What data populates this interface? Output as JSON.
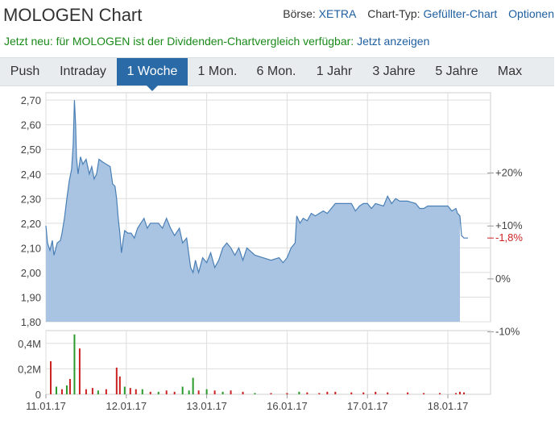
{
  "header": {
    "title": "MOLOGEN Chart",
    "boerse_label": "Börse:",
    "boerse_value": "XETRA",
    "charttyp_label": "Chart-Typ:",
    "charttyp_value": "Gefüllter-Chart",
    "optionen": "Optionen"
  },
  "notice": {
    "text": "Jetzt neu: für MOLOGEN ist der Dividenden-Chartvergleich verfügbar:",
    "link": "Jetzt anzeigen"
  },
  "tabs": [
    {
      "label": "Push",
      "active": false
    },
    {
      "label": "Intraday",
      "active": false
    },
    {
      "label": "1 Woche",
      "active": true
    },
    {
      "label": "1 Mon.",
      "active": false
    },
    {
      "label": "6 Mon.",
      "active": false
    },
    {
      "label": "1 Jahr",
      "active": false
    },
    {
      "label": "3 Jahre",
      "active": false
    },
    {
      "label": "5 Jahre",
      "active": false
    },
    {
      "label": "Max",
      "active": false
    }
  ],
  "colors": {
    "area_fill": "#a9c4e2",
    "area_line": "#4a7fb5",
    "grid": "#dddddd",
    "volume_up": "#2a9a2a",
    "volume_down": "#cc2222",
    "change_negative": "#cc2222"
  },
  "chart_data": {
    "type": "area",
    "title": "",
    "y_ticks": [
      "2,70",
      "2,60",
      "2,50",
      "2,40",
      "2,30",
      "2,20",
      "2,10",
      "2,00",
      "1,90",
      "1,80"
    ],
    "ylim": [
      1.8,
      2.73
    ],
    "right_ticks": [
      {
        "label": "+20%",
        "value": 2.404
      },
      {
        "label": "+10%",
        "value": 2.189
      },
      {
        "label": "0%",
        "value": 1.974
      },
      {
        "label": "-10%",
        "value": 1.759
      }
    ],
    "current_change": "-1,8%",
    "current_value": 2.14,
    "reference_value": 2.18,
    "x_ticks": [
      {
        "label": "11.01.17",
        "t": 0
      },
      {
        "label": "12.01.17",
        "t": 1
      },
      {
        "label": "13.01.17",
        "t": 2
      },
      {
        "label": "16.01.17",
        "t": 3
      },
      {
        "label": "17.01.17",
        "t": 4
      },
      {
        "label": "18.01.17",
        "t": 5
      }
    ],
    "x_range": [
      0,
      5.25
    ],
    "price": [
      [
        0.0,
        2.19
      ],
      [
        0.02,
        2.12
      ],
      [
        0.05,
        2.09
      ],
      [
        0.08,
        2.13
      ],
      [
        0.1,
        2.07
      ],
      [
        0.14,
        2.12
      ],
      [
        0.18,
        2.13
      ],
      [
        0.2,
        2.16
      ],
      [
        0.23,
        2.22
      ],
      [
        0.26,
        2.3
      ],
      [
        0.29,
        2.37
      ],
      [
        0.32,
        2.42
      ],
      [
        0.34,
        2.52
      ],
      [
        0.355,
        2.7
      ],
      [
        0.37,
        2.6
      ],
      [
        0.38,
        2.47
      ],
      [
        0.4,
        2.4
      ],
      [
        0.43,
        2.47
      ],
      [
        0.46,
        2.44
      ],
      [
        0.5,
        2.46
      ],
      [
        0.54,
        2.4
      ],
      [
        0.57,
        2.43
      ],
      [
        0.6,
        2.38
      ],
      [
        0.63,
        2.4
      ],
      [
        0.66,
        2.46
      ],
      [
        0.7,
        2.45
      ],
      [
        0.75,
        2.44
      ],
      [
        0.8,
        2.43
      ],
      [
        0.83,
        2.36
      ],
      [
        0.86,
        2.35
      ],
      [
        0.88,
        2.3
      ],
      [
        0.9,
        2.22
      ],
      [
        0.92,
        2.16
      ],
      [
        0.94,
        2.08
      ],
      [
        0.96,
        2.13
      ],
      [
        0.98,
        2.17
      ],
      [
        1.02,
        2.16
      ],
      [
        1.06,
        2.16
      ],
      [
        1.1,
        2.14
      ],
      [
        1.14,
        2.18
      ],
      [
        1.18,
        2.2
      ],
      [
        1.22,
        2.22
      ],
      [
        1.26,
        2.18
      ],
      [
        1.3,
        2.2
      ],
      [
        1.4,
        2.2
      ],
      [
        1.45,
        2.18
      ],
      [
        1.5,
        2.22
      ],
      [
        1.55,
        2.18
      ],
      [
        1.6,
        2.15
      ],
      [
        1.66,
        2.18
      ],
      [
        1.7,
        2.12
      ],
      [
        1.75,
        2.14
      ],
      [
        1.8,
        2.02
      ],
      [
        1.83,
        2.0
      ],
      [
        1.86,
        2.05
      ],
      [
        1.9,
        2.0
      ],
      [
        1.95,
        2.06
      ],
      [
        2.0,
        2.04
      ],
      [
        2.05,
        2.08
      ],
      [
        2.1,
        2.02
      ],
      [
        2.15,
        2.05
      ],
      [
        2.2,
        2.1
      ],
      [
        2.25,
        2.12
      ],
      [
        2.3,
        2.1
      ],
      [
        2.35,
        2.07
      ],
      [
        2.4,
        2.1
      ],
      [
        2.45,
        2.05
      ],
      [
        2.5,
        2.1
      ],
      [
        2.6,
        2.07
      ],
      [
        2.7,
        2.06
      ],
      [
        2.8,
        2.05
      ],
      [
        2.9,
        2.06
      ],
      [
        2.95,
        2.04
      ],
      [
        3.0,
        2.06
      ],
      [
        3.05,
        2.1
      ],
      [
        3.1,
        2.12
      ],
      [
        3.12,
        2.23
      ],
      [
        3.16,
        2.2
      ],
      [
        3.2,
        2.22
      ],
      [
        3.25,
        2.21
      ],
      [
        3.3,
        2.24
      ],
      [
        3.35,
        2.23
      ],
      [
        3.4,
        2.24
      ],
      [
        3.45,
        2.25
      ],
      [
        3.5,
        2.24
      ],
      [
        3.55,
        2.26
      ],
      [
        3.6,
        2.28
      ],
      [
        3.7,
        2.28
      ],
      [
        3.8,
        2.28
      ],
      [
        3.85,
        2.25
      ],
      [
        3.9,
        2.27
      ],
      [
        3.95,
        2.28
      ],
      [
        4.0,
        2.28
      ],
      [
        4.05,
        2.26
      ],
      [
        4.1,
        2.28
      ],
      [
        4.2,
        2.27
      ],
      [
        4.25,
        2.31
      ],
      [
        4.3,
        2.28
      ],
      [
        4.35,
        2.3
      ],
      [
        4.4,
        2.29
      ],
      [
        4.5,
        2.29
      ],
      [
        4.6,
        2.28
      ],
      [
        4.65,
        2.26
      ],
      [
        4.7,
        2.26
      ],
      [
        4.75,
        2.27
      ],
      [
        4.8,
        2.27
      ],
      [
        4.9,
        2.27
      ],
      [
        5.0,
        2.27
      ],
      [
        5.05,
        2.25
      ],
      [
        5.1,
        2.26
      ],
      [
        5.12,
        2.24
      ],
      [
        5.15,
        2.23
      ],
      [
        5.17,
        2.15
      ],
      [
        5.2,
        2.14
      ],
      [
        5.25,
        2.14
      ]
    ],
    "volume_ticks": [
      "0,4M",
      "0,2M",
      "0"
    ],
    "volume_max": 0.5,
    "volume": [
      {
        "t": 0.06,
        "v": 0.26,
        "dir": "down"
      },
      {
        "t": 0.13,
        "v": 0.06,
        "dir": "up"
      },
      {
        "t": 0.2,
        "v": 0.04,
        "dir": "down"
      },
      {
        "t": 0.26,
        "v": 0.07,
        "dir": "up"
      },
      {
        "t": 0.3,
        "v": 0.12,
        "dir": "down"
      },
      {
        "t": 0.355,
        "v": 0.47,
        "dir": "up"
      },
      {
        "t": 0.42,
        "v": 0.36,
        "dir": "down"
      },
      {
        "t": 0.5,
        "v": 0.04,
        "dir": "down"
      },
      {
        "t": 0.58,
        "v": 0.05,
        "dir": "down"
      },
      {
        "t": 0.65,
        "v": 0.03,
        "dir": "up"
      },
      {
        "t": 0.75,
        "v": 0.04,
        "dir": "down"
      },
      {
        "t": 0.88,
        "v": 0.21,
        "dir": "down"
      },
      {
        "t": 0.92,
        "v": 0.14,
        "dir": "down"
      },
      {
        "t": 0.98,
        "v": 0.06,
        "dir": "up"
      },
      {
        "t": 1.05,
        "v": 0.05,
        "dir": "down"
      },
      {
        "t": 1.12,
        "v": 0.04,
        "dir": "down"
      },
      {
        "t": 1.2,
        "v": 0.04,
        "dir": "up"
      },
      {
        "t": 1.3,
        "v": 0.02,
        "dir": "down"
      },
      {
        "t": 1.4,
        "v": 0.02,
        "dir": "up"
      },
      {
        "t": 1.5,
        "v": 0.03,
        "dir": "down"
      },
      {
        "t": 1.6,
        "v": 0.02,
        "dir": "down"
      },
      {
        "t": 1.7,
        "v": 0.06,
        "dir": "up"
      },
      {
        "t": 1.78,
        "v": 0.03,
        "dir": "up"
      },
      {
        "t": 1.83,
        "v": 0.13,
        "dir": "up"
      },
      {
        "t": 1.9,
        "v": 0.03,
        "dir": "down"
      },
      {
        "t": 2.0,
        "v": 0.04,
        "dir": "up"
      },
      {
        "t": 2.1,
        "v": 0.03,
        "dir": "down"
      },
      {
        "t": 2.2,
        "v": 0.02,
        "dir": "up"
      },
      {
        "t": 2.3,
        "v": 0.03,
        "dir": "down"
      },
      {
        "t": 2.45,
        "v": 0.02,
        "dir": "down"
      },
      {
        "t": 2.6,
        "v": 0.01,
        "dir": "up"
      },
      {
        "t": 2.8,
        "v": 0.01,
        "dir": "down"
      },
      {
        "t": 3.0,
        "v": 0.01,
        "dir": "down"
      },
      {
        "t": 3.15,
        "v": 0.02,
        "dir": "up"
      },
      {
        "t": 3.25,
        "v": 0.015,
        "dir": "down"
      },
      {
        "t": 3.4,
        "v": 0.01,
        "dir": "down"
      },
      {
        "t": 3.5,
        "v": 0.02,
        "dir": "down"
      },
      {
        "t": 3.6,
        "v": 0.02,
        "dir": "down"
      },
      {
        "t": 3.8,
        "v": 0.015,
        "dir": "down"
      },
      {
        "t": 3.95,
        "v": 0.015,
        "dir": "down"
      },
      {
        "t": 4.1,
        "v": 0.02,
        "dir": "down"
      },
      {
        "t": 4.25,
        "v": 0.015,
        "dir": "down"
      },
      {
        "t": 4.5,
        "v": 0.015,
        "dir": "down"
      },
      {
        "t": 4.7,
        "v": 0.01,
        "dir": "down"
      },
      {
        "t": 4.9,
        "v": 0.01,
        "dir": "down"
      },
      {
        "t": 5.1,
        "v": 0.01,
        "dir": "down"
      },
      {
        "t": 5.15,
        "v": 0.02,
        "dir": "down"
      },
      {
        "t": 5.2,
        "v": 0.015,
        "dir": "down"
      }
    ]
  }
}
